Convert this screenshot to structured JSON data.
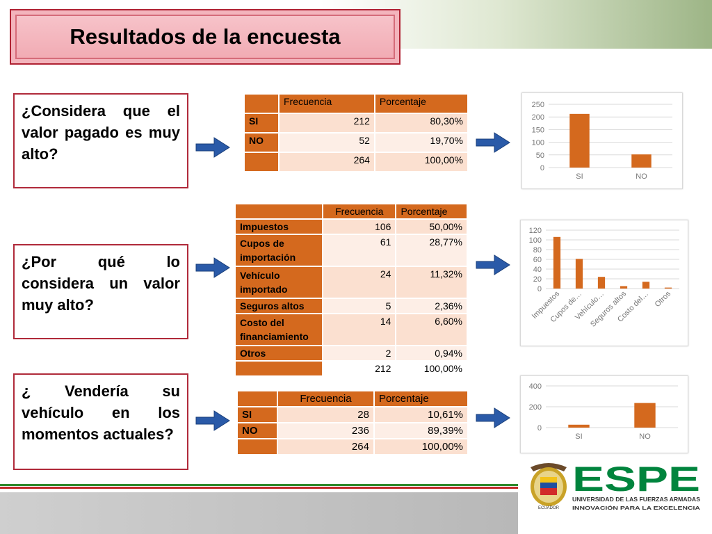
{
  "title": "Resultados de la encuesta",
  "questions": [
    "¿Considera que el valor pagado es muy alto?",
    "¿Por qué lo considera un valor muy alto?",
    "¿ Vendería su vehículo en los momentos actuales?"
  ],
  "table1": {
    "h1": "Frecuencia",
    "h2": "Porcentaje",
    "rows": [
      {
        "label": "SI",
        "f": "212",
        "p": "80,30%"
      },
      {
        "label": "NO",
        "f": "52",
        "p": "19,70%"
      },
      {
        "label": "",
        "f": "264",
        "p": "100,00%"
      }
    ]
  },
  "table2": {
    "h1": "Frecuencia",
    "h2": "Porcentaje",
    "rows": [
      {
        "label": "Impuestos",
        "f": "106",
        "p": "50,00%"
      },
      {
        "label": "Cupos de importación",
        "f": "61",
        "p": "28,77%"
      },
      {
        "label": "Vehículo importado",
        "f": "24",
        "p": "11,32%"
      },
      {
        "label": "Seguros altos",
        "f": "5",
        "p": "2,36%"
      },
      {
        "label": "Costo del financiamiento",
        "f": "14",
        "p": "6,60%"
      },
      {
        "label": "Otros",
        "f": "2",
        "p": "0,94%"
      },
      {
        "label": "",
        "f": "212",
        "p": "100,00%"
      }
    ]
  },
  "table3": {
    "h1": "Frecuencia",
    "h2": "Porcentaje",
    "rows": [
      {
        "label": "SI",
        "f": "28",
        "p": "10,61%"
      },
      {
        "label": "NO",
        "f": "236",
        "p": "89,39%"
      },
      {
        "label": "",
        "f": "264",
        "p": "100,00%"
      }
    ]
  },
  "chart_data": [
    {
      "type": "bar",
      "categories": [
        "SI",
        "NO"
      ],
      "values": [
        212,
        52
      ],
      "ylim": [
        0,
        250
      ],
      "ticks": [
        0,
        50,
        100,
        150,
        200,
        250
      ],
      "grid": true,
      "color": "#d4691e"
    },
    {
      "type": "bar",
      "categories": [
        "Impuestos",
        "Cupos de…",
        "Vehículo…",
        "Seguros altos",
        "Costo del…",
        "Otros"
      ],
      "values": [
        106,
        61,
        24,
        5,
        14,
        2
      ],
      "ylim": [
        0,
        120
      ],
      "ticks": [
        0,
        20,
        40,
        60,
        80,
        100,
        120
      ],
      "grid": true,
      "color": "#d4691e"
    },
    {
      "type": "bar",
      "categories": [
        "SI",
        "NO"
      ],
      "values": [
        28,
        236
      ],
      "ylim": [
        0,
        400
      ],
      "ticks": [
        0,
        200,
        400
      ],
      "grid": true,
      "color": "#d4691e"
    }
  ],
  "logo": {
    "name": "ESPE",
    "line1": "UNIVERSIDAD DE LAS FUERZAS ARMADAS",
    "line2": "INNOVACIÓN PARA LA EXCELENCIA",
    "seal_text": "ECUADOR"
  },
  "colors": {
    "accent": "#d4691e",
    "green": "#00843d",
    "red": "#b02a3a"
  }
}
